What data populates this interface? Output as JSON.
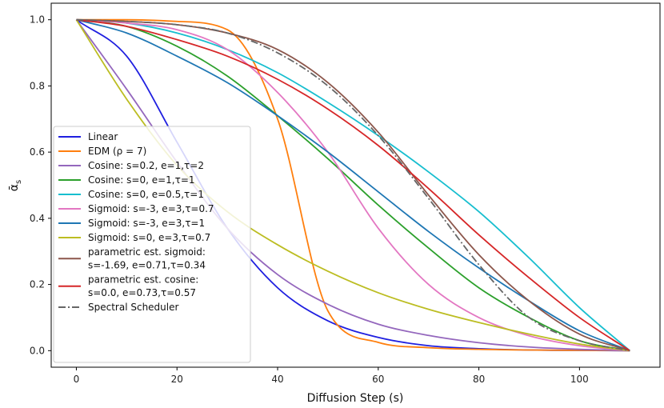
{
  "chart_data": {
    "type": "line",
    "title": "",
    "xlabel": "Diffusion Step (s)",
    "ylabel": "ᾱ",
    "ylabel_subscript": "s",
    "xlim": [
      -5,
      116
    ],
    "ylim": [
      -0.05,
      1.05
    ],
    "xticks": [
      0,
      20,
      40,
      60,
      80,
      100
    ],
    "yticks": [
      0.0,
      0.2,
      0.4,
      0.6,
      0.8,
      1.0
    ],
    "xtick_labels": [
      "0",
      "20",
      "40",
      "60",
      "80",
      "100"
    ],
    "ytick_labels": [
      "0.0",
      "0.2",
      "0.4",
      "0.6",
      "0.8",
      "1.0"
    ],
    "grid": false,
    "legend_position": "lower-left",
    "x": [
      0,
      10,
      20,
      30,
      40,
      50,
      60,
      70,
      80,
      90,
      100,
      110
    ],
    "series": [
      {
        "name": "Linear",
        "color": "#1f1fe0",
        "dash": "solid",
        "legend_lines": [
          "Linear"
        ],
        "values": [
          1.0,
          0.89,
          0.63,
          0.37,
          0.19,
          0.09,
          0.04,
          0.015,
          0.006,
          0.002,
          0.0007,
          0.0
        ]
      },
      {
        "name": "EDM (ρ = 7)",
        "color": "#ff7f0e",
        "dash": "solid",
        "legend_lines": [
          "EDM (ρ = 7)"
        ],
        "values": [
          1.0,
          1.0,
          0.995,
          0.97,
          0.7,
          0.12,
          0.025,
          0.009,
          0.004,
          0.002,
          0.001,
          0.0
        ]
      },
      {
        "name": "Cosine: s=0.2, e=1,τ=2",
        "color": "#9467bd",
        "dash": "solid",
        "legend_lines": [
          "Cosine: s=0.2, e=1,τ=2"
        ],
        "values": [
          1.0,
          0.79,
          0.57,
          0.37,
          0.23,
          0.14,
          0.08,
          0.046,
          0.024,
          0.011,
          0.004,
          0.0
        ]
      },
      {
        "name": "Cosine: s=0, e=1,τ=1",
        "color": "#2ca02c",
        "dash": "solid",
        "legend_lines": [
          "Cosine: s=0, e=1,τ=1"
        ],
        "values": [
          1.0,
          0.98,
          0.92,
          0.83,
          0.71,
          0.58,
          0.44,
          0.31,
          0.19,
          0.1,
          0.03,
          0.0
        ]
      },
      {
        "name": "Cosine: s=0, e=0.5,τ=1",
        "color": "#17becf",
        "dash": "solid",
        "legend_lines": [
          "Cosine: s=0, e=0.5,τ=1"
        ],
        "values": [
          1.0,
          0.99,
          0.96,
          0.91,
          0.84,
          0.75,
          0.65,
          0.54,
          0.42,
          0.28,
          0.13,
          0.0
        ]
      },
      {
        "name": "Sigmoid: s=-3, e=3,τ=0.7",
        "color": "#e377c2",
        "dash": "solid",
        "legend_lines": [
          "Sigmoid: s=-3, e=3,τ=0.7"
        ],
        "values": [
          1.0,
          0.99,
          0.97,
          0.91,
          0.78,
          0.6,
          0.37,
          0.2,
          0.1,
          0.045,
          0.015,
          0.0
        ]
      },
      {
        "name": "Sigmoid: s=-3, e=3,τ=1",
        "color": "#1f77b4",
        "dash": "solid",
        "legend_lines": [
          "Sigmoid: s=-3, e=3,τ=1"
        ],
        "values": [
          1.0,
          0.96,
          0.89,
          0.81,
          0.71,
          0.6,
          0.48,
          0.36,
          0.25,
          0.15,
          0.06,
          0.0
        ]
      },
      {
        "name": "Sigmoid: s=0, e=3,τ=0.7",
        "color": "#bcbd22",
        "dash": "solid",
        "legend_lines": [
          "Sigmoid: s=0, e=3,τ=0.7"
        ],
        "values": [
          1.0,
          0.76,
          0.56,
          0.42,
          0.32,
          0.24,
          0.175,
          0.125,
          0.085,
          0.05,
          0.02,
          0.0
        ]
      },
      {
        "name": "parametric est. sigmoid: s=-1.69, e=0.71,τ=0.34",
        "color": "#8c564b",
        "dash": "solid",
        "legend_lines": [
          "parametric est. sigmoid:",
          " s=-1.69, e=0.71,τ=0.34"
        ],
        "values": [
          1.0,
          0.995,
          0.985,
          0.96,
          0.91,
          0.81,
          0.66,
          0.47,
          0.29,
          0.15,
          0.05,
          0.0
        ]
      },
      {
        "name": "parametric est. cosine: s=0.0, e=0.73,τ=0.57",
        "color": "#d62728",
        "dash": "solid",
        "legend_lines": [
          "parametric est. cosine:",
          " s=0.0, e=0.73,τ=0.57"
        ],
        "values": [
          1.0,
          0.98,
          0.94,
          0.89,
          0.82,
          0.73,
          0.62,
          0.49,
          0.35,
          0.22,
          0.1,
          0.0
        ]
      },
      {
        "name": "Spectral Scheduler",
        "color": "#666666",
        "dash": "dashdot",
        "legend_lines": [
          "Spectral Scheduler"
        ],
        "values": [
          1.0,
          0.995,
          0.985,
          0.96,
          0.9,
          0.8,
          0.65,
          0.46,
          0.26,
          0.1,
          0.03,
          0.0
        ]
      }
    ]
  }
}
